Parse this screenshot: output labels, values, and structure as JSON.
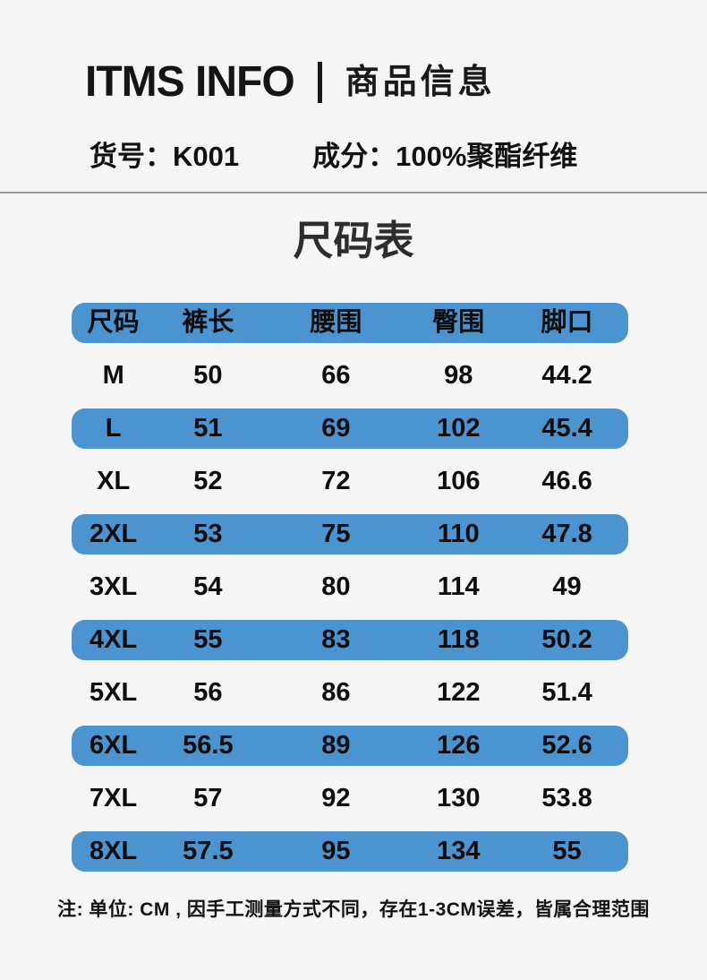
{
  "page": {
    "background_color": "#f5f5f6",
    "accent_blue": "#4b94d0"
  },
  "header": {
    "brand": "ITMS INFO",
    "subtitle": "商品信息"
  },
  "product": {
    "item_no": "货号：K001",
    "composition": "成分：100%聚酯纤维"
  },
  "size_chart": {
    "title": "尺码表",
    "columns": [
      "尺码",
      "裤长",
      "腰围",
      "臀围",
      "脚口"
    ],
    "rows": [
      {
        "size": "M",
        "values": [
          "50",
          "66",
          "98",
          "44.2"
        ],
        "highlight": false
      },
      {
        "size": "L",
        "values": [
          "51",
          "69",
          "102",
          "45.4"
        ],
        "highlight": true
      },
      {
        "size": "XL",
        "values": [
          "52",
          "72",
          "106",
          "46.6"
        ],
        "highlight": false
      },
      {
        "size": "2XL",
        "values": [
          "53",
          "75",
          "110",
          "47.8"
        ],
        "highlight": true
      },
      {
        "size": "3XL",
        "values": [
          "54",
          "80",
          "114",
          "49"
        ],
        "highlight": false
      },
      {
        "size": "4XL",
        "values": [
          "55",
          "83",
          "118",
          "50.2"
        ],
        "highlight": true
      },
      {
        "size": "5XL",
        "values": [
          "56",
          "86",
          "122",
          "51.4"
        ],
        "highlight": false
      },
      {
        "size": "6XL",
        "values": [
          "56.5",
          "89",
          "126",
          "52.6"
        ],
        "highlight": true
      },
      {
        "size": "7XL",
        "values": [
          "57",
          "92",
          "130",
          "53.8"
        ],
        "highlight": false
      },
      {
        "size": "8XL",
        "values": [
          "57.5",
          "95",
          "134",
          "55"
        ],
        "highlight": true
      }
    ],
    "note": "注: 单位: CM , 因手工测量方式不同，存在1-3CM误差，皆属合理范围"
  },
  "chart_data": {
    "type": "table",
    "title": "尺码表",
    "columns": [
      "尺码",
      "裤长",
      "腰围",
      "臀围",
      "脚口"
    ],
    "unit": "CM",
    "values": [
      [
        "M",
        50,
        66,
        98,
        44.2
      ],
      [
        "L",
        51,
        69,
        102,
        45.4
      ],
      [
        "XL",
        52,
        72,
        106,
        46.6
      ],
      [
        "2XL",
        53,
        75,
        110,
        47.8
      ],
      [
        "3XL",
        54,
        80,
        114,
        49
      ],
      [
        "4XL",
        55,
        83,
        118,
        50.2
      ],
      [
        "5XL",
        56,
        86,
        122,
        51.4
      ],
      [
        "6XL",
        56.5,
        89,
        126,
        52.6
      ],
      [
        "7XL",
        57,
        92,
        130,
        53.8
      ],
      [
        "8XL",
        57.5,
        95,
        134,
        55
      ]
    ]
  }
}
